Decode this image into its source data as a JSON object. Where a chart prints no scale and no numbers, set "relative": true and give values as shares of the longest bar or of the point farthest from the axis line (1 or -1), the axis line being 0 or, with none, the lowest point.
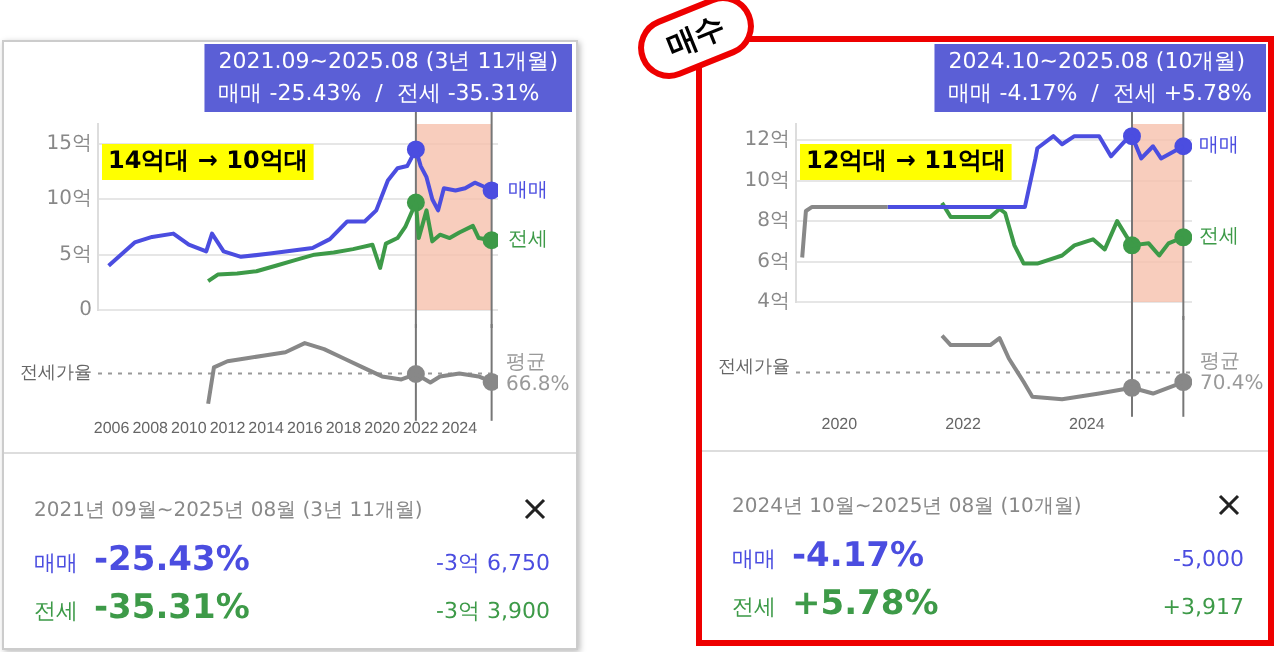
{
  "chart_data": [
    {
      "type": "line",
      "xlim": [
        2005.3,
        2026.0
      ],
      "xticks": [
        2006,
        2008,
        2010,
        2012,
        2014,
        2016,
        2018,
        2020,
        2022,
        2024
      ],
      "ylim": [
        0,
        16.8
      ],
      "yticks": [
        0,
        {
          "value": 5,
          "label": "5억"
        },
        {
          "value": 10,
          "label": "10억"
        },
        {
          "value": 15,
          "label": "15억"
        }
      ],
      "grid": "y",
      "tick_labels": "y",
      "legend": false,
      "marker": "none",
      "annotations": [
        "2021.09~2025.08 (3년 11개월)",
        "매매 -25.43%  /  전세 -35.31%",
        "14억대 → 10억대"
      ],
      "bands": [
        {
          "axis": "x",
          "from": 2021.75,
          "to": 2025.67,
          "color": "#f6c0ac"
        }
      ],
      "ref_lines": [
        {
          "axis": "x",
          "value": 2021.75,
          "color": "#777777"
        },
        {
          "axis": "x",
          "value": 2025.67,
          "color": "#777777"
        }
      ],
      "series": [
        {
          "name": "매매",
          "color": "#4b4de0",
          "x": [
            2005.85,
            2007.2,
            2008.1,
            2009.2,
            2010.0,
            2010.9,
            2011.2,
            2011.8,
            2012.7,
            2014.2,
            2015.1,
            2016.4,
            2017.3,
            2018.2,
            2019.1,
            2019.7,
            2020.3,
            2020.8,
            2021.3,
            2021.75,
            2022.0,
            2022.3,
            2022.6,
            2022.9,
            2023.2,
            2023.8,
            2024.3,
            2024.8,
            2025.2,
            2025.67
          ],
          "values": [
            4.0,
            6.1,
            6.6,
            6.9,
            5.9,
            5.3,
            6.9,
            5.3,
            4.8,
            5.1,
            5.3,
            5.6,
            6.4,
            8.0,
            8.0,
            9.0,
            11.7,
            12.8,
            13.0,
            14.5,
            13.0,
            12.0,
            10.0,
            9.0,
            11.0,
            10.8,
            11.0,
            11.5,
            11.2,
            10.8
          ]
        },
        {
          "name": "전세",
          "color": "#3d9a48",
          "x": [
            2011.0,
            2011.5,
            2012.5,
            2013.5,
            2014.5,
            2015.5,
            2016.5,
            2017.5,
            2018.5,
            2019.5,
            2019.9,
            2020.2,
            2020.8,
            2021.2,
            2021.75,
            2021.9,
            2022.3,
            2022.6,
            2023.0,
            2023.5,
            2024.0,
            2024.7,
            2025.0,
            2025.67
          ],
          "values": [
            2.6,
            3.2,
            3.3,
            3.5,
            4.0,
            4.5,
            5.0,
            5.2,
            5.5,
            5.9,
            3.8,
            6.0,
            6.5,
            7.5,
            9.7,
            6.5,
            9.0,
            6.2,
            6.8,
            6.5,
            7.0,
            7.6,
            6.5,
            6.3
          ]
        },
        {
          "type": "scatter",
          "marker": "circle",
          "color": "#4b4de0",
          "x": [
            2021.75,
            2025.67
          ],
          "values": [
            14.5,
            10.8
          ]
        },
        {
          "type": "scatter",
          "marker": "circle",
          "color": "#3d9a48",
          "x": [
            2021.75,
            2025.67
          ],
          "values": [
            9.7,
            6.3
          ]
        }
      ]
    },
    {
      "type": "line",
      "relative": true,
      "ylabel": "전세가율",
      "xlim": [
        2005.3,
        2026.0
      ],
      "xticks": [
        2006,
        2008,
        2010,
        2012,
        2014,
        2016,
        2018,
        2020,
        2022,
        2024
      ],
      "tick_labels": "x",
      "legend": false,
      "marker": "none",
      "ref_lines": [
        {
          "axis": "y",
          "value": 0.5,
          "label": "평균 66.8%",
          "line_style": "dotted",
          "color": "#999999"
        },
        {
          "axis": "x",
          "value": 2021.75,
          "color": "#777777"
        },
        {
          "axis": "x",
          "value": 2025.67,
          "color": "#777777"
        }
      ],
      "series": [
        {
          "color": "#888888",
          "x": [
            2011.0,
            2011.3,
            2012.0,
            2013.0,
            2014.0,
            2015.0,
            2016.0,
            2017.0,
            2018.0,
            2019.0,
            2020.0,
            2021.0,
            2021.75,
            2022.5,
            2023.0,
            2024.0,
            2025.0,
            2025.67
          ],
          "values": [
            0.0,
            0.6,
            0.7,
            0.75,
            0.8,
            0.85,
            1.0,
            0.9,
            0.75,
            0.6,
            0.45,
            0.4,
            0.49,
            0.35,
            0.45,
            0.5,
            0.45,
            0.36
          ]
        },
        {
          "type": "scatter",
          "marker": "circle",
          "color": "#888888",
          "x": [
            2021.75,
            2025.67
          ],
          "values": [
            0.49,
            0.36
          ]
        }
      ]
    },
    {
      "type": "other",
      "title": "2021년 09월~2025년 08월 (3년 11개월)",
      "categories": [
        "매매",
        "전세"
      ],
      "value_labels": [
        "-25.43%",
        "-35.31%"
      ],
      "colors": [
        "#4b4de0",
        "#3d9a48"
      ],
      "annotations": [
        "-3억 6,750",
        "-3억 3,900"
      ]
    },
    {
      "type": "line",
      "xlim": [
        2019.3,
        2025.7
      ],
      "xticks": [
        2020,
        2022,
        2024
      ],
      "ylim": [
        4,
        12.8
      ],
      "yticks": [
        {
          "value": 4,
          "label": "4억"
        },
        {
          "value": 6,
          "label": "6억"
        },
        {
          "value": 8,
          "label": "8억"
        },
        {
          "value": 10,
          "label": "10억"
        },
        {
          "value": 12,
          "label": "12억"
        }
      ],
      "grid": "y",
      "tick_labels": "y",
      "legend": false,
      "marker": "none",
      "annotations": [
        "2024.10~2025.08 (10개월)",
        "매매 -4.17%  /  전세 +5.78%",
        "12억대 → 11억대",
        "매수"
      ],
      "bands": [
        {
          "axis": "x",
          "from": 2024.73,
          "to": 2025.56,
          "color": "#f6c0ac"
        }
      ],
      "ref_lines": [
        {
          "axis": "x",
          "value": 2024.73,
          "color": "#777777"
        },
        {
          "axis": "x",
          "value": 2025.56,
          "color": "#777777"
        }
      ],
      "series": [
        {
          "color": "#888888",
          "x": [
            2019.4,
            2019.46,
            2019.56,
            2020.78
          ],
          "values": [
            6.2,
            8.5,
            8.7,
            8.7
          ]
        },
        {
          "name": "매매",
          "color": "#4b4de0",
          "x": [
            2020.78,
            2023.0,
            2023.17,
            2023.2,
            2023.46,
            2023.6,
            2023.8,
            2024.2,
            2024.39,
            2024.6,
            2024.73,
            2024.88,
            2025.07,
            2025.2,
            2025.56
          ],
          "values": [
            8.7,
            8.7,
            11.1,
            11.6,
            12.2,
            11.8,
            12.2,
            12.2,
            11.2,
            11.9,
            12.2,
            11.1,
            11.7,
            11.1,
            11.7
          ]
        },
        {
          "name": "전세",
          "color": "#3d9a48",
          "x": [
            2021.66,
            2021.8,
            2022.44,
            2022.59,
            2022.68,
            2022.83,
            2022.98,
            2023.2,
            2023.6,
            2023.8,
            2024.1,
            2024.29,
            2024.49,
            2024.73,
            2025.0,
            2025.17,
            2025.32,
            2025.56
          ],
          "values": [
            8.9,
            8.2,
            8.2,
            8.6,
            8.4,
            6.8,
            5.9,
            5.9,
            6.3,
            6.8,
            7.1,
            6.6,
            8.0,
            6.8,
            6.9,
            6.3,
            6.9,
            7.2
          ]
        },
        {
          "type": "scatter",
          "marker": "circle",
          "color": "#4b4de0",
          "x": [
            2024.73,
            2025.56
          ],
          "values": [
            12.2,
            11.7
          ]
        },
        {
          "type": "scatter",
          "marker": "circle",
          "color": "#3d9a48",
          "x": [
            2024.73,
            2025.56
          ],
          "values": [
            6.8,
            7.2
          ]
        }
      ]
    },
    {
      "type": "line",
      "relative": true,
      "ylabel": "전세가율",
      "xlim": [
        2019.3,
        2025.7
      ],
      "xticks": [
        2020,
        2022,
        2024
      ],
      "tick_labels": "x",
      "legend": false,
      "marker": "none",
      "ref_lines": [
        {
          "axis": "y",
          "value": 0.42,
          "label": "평균 70.4%",
          "line_style": "dotted",
          "color": "#999999"
        },
        {
          "axis": "x",
          "value": 2024.73,
          "color": "#777777"
        },
        {
          "axis": "x",
          "value": 2025.56,
          "color": "#777777"
        }
      ],
      "series": [
        {
          "color": "#888888",
          "x": [
            2021.66,
            2021.8,
            2022.44,
            2022.59,
            2022.74,
            2022.98,
            2023.12,
            2023.6,
            2024.2,
            2024.73,
            2025.07,
            2025.56
          ],
          "values": [
            1.0,
            0.85,
            0.85,
            0.96,
            0.64,
            0.27,
            0.04,
            0.0,
            0.09,
            0.18,
            0.09,
            0.27
          ]
        },
        {
          "type": "scatter",
          "marker": "circle",
          "color": "#888888",
          "x": [
            2024.73,
            2025.56
          ],
          "values": [
            0.18,
            0.27
          ]
        }
      ]
    },
    {
      "type": "other",
      "title": "2024년 10월~2025년 08월 (10개월)",
      "categories": [
        "매매",
        "전세"
      ],
      "value_labels": [
        "-4.17%",
        "+5.78%"
      ],
      "colors": [
        "#4b4de0",
        "#3d9a48"
      ],
      "annotations": [
        "-5,000",
        "+3,917"
      ]
    }
  ]
}
